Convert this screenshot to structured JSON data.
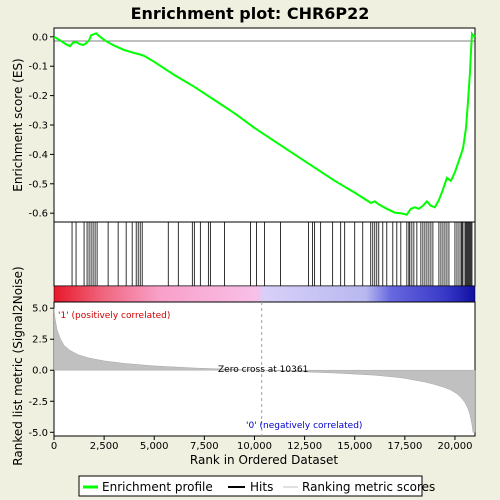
{
  "chart_data": [
    {
      "type": "line",
      "title": "Enrichment plot: CHR6P22",
      "xlabel": "",
      "ylabel": "Enrichment score (ES)",
      "xlim": [
        0,
        21000
      ],
      "ylim": [
        -0.63,
        0.03
      ],
      "yticks": [
        0.0,
        -0.1,
        -0.2,
        -0.3,
        -0.4,
        -0.5,
        -0.6
      ],
      "ytick_labels": [
        "0.0",
        "-0.1",
        "-0.2",
        "-0.3",
        "-0.4",
        "-0.5",
        "-0.6"
      ],
      "series": [
        {
          "name": "Enrichment profile",
          "color": "#00ff00",
          "x": [
            0,
            300,
            600,
            800,
            950,
            1100,
            1300,
            1450,
            1600,
            1750,
            1850,
            1950,
            2100,
            2300,
            2600,
            3000,
            3500,
            4000,
            4300,
            4500,
            5000,
            6000,
            7000,
            8000,
            9000,
            10000,
            11000,
            12000,
            13000,
            14000,
            15000,
            15800,
            16000,
            16200,
            16600,
            17000,
            17300,
            17600,
            17800,
            18000,
            18200,
            18400,
            18600,
            18800,
            19000,
            19200,
            19400,
            19600,
            19800,
            20000,
            20200,
            20400,
            20550,
            20650,
            20750,
            20800,
            20850,
            20900,
            21000
          ],
          "y": [
            0.0,
            -0.012,
            -0.025,
            -0.032,
            -0.02,
            -0.018,
            -0.025,
            -0.028,
            -0.022,
            -0.012,
            0.005,
            0.008,
            0.012,
            0.0,
            -0.015,
            -0.03,
            -0.045,
            -0.055,
            -0.06,
            -0.065,
            -0.085,
            -0.13,
            -0.17,
            -0.215,
            -0.26,
            -0.31,
            -0.355,
            -0.4,
            -0.445,
            -0.49,
            -0.53,
            -0.565,
            -0.56,
            -0.57,
            -0.585,
            -0.598,
            -0.6,
            -0.605,
            -0.585,
            -0.58,
            -0.585,
            -0.575,
            -0.56,
            -0.575,
            -0.58,
            -0.555,
            -0.52,
            -0.48,
            -0.49,
            -0.46,
            -0.42,
            -0.38,
            -0.31,
            -0.22,
            -0.12,
            -0.05,
            0.01,
            0.005,
            0.0
          ]
        }
      ]
    },
    {
      "type": "scatter",
      "title": "",
      "xlabel": "",
      "ylabel": "",
      "xlim": [
        0,
        21000
      ],
      "series": [
        {
          "name": "Hits",
          "color": "#000000",
          "x": [
            900,
            1100,
            1500,
            1650,
            1750,
            1850,
            1950,
            2050,
            2150,
            2700,
            3200,
            3600,
            3900,
            4100,
            4200,
            4300,
            4400,
            5700,
            6200,
            6900,
            7000,
            7300,
            7700,
            7800,
            8500,
            9800,
            10100,
            10500,
            11300,
            12700,
            12900,
            13000,
            13300,
            13900,
            14300,
            14500,
            15000,
            15400,
            15800,
            15900,
            16000,
            16100,
            16200,
            16400,
            16600,
            16900,
            17100,
            17300,
            17600,
            17700,
            17750,
            17850,
            17950,
            18100,
            18300,
            18400,
            18500,
            18600,
            18700,
            18800,
            18900,
            19200,
            19300,
            19400,
            19500,
            19600,
            19700,
            20000,
            20100,
            20200,
            20300,
            20350,
            20400,
            20500,
            20550,
            20600,
            20650,
            20700,
            20750,
            20800,
            20850
          ]
        }
      ]
    },
    {
      "type": "area",
      "title": "",
      "xlabel": "Rank in Ordered Dataset",
      "ylabel": "Ranked list metric (Signal2Noise)",
      "xlim": [
        0,
        21000
      ],
      "ylim": [
        -5.3,
        5.5
      ],
      "xticks": [
        0,
        2500,
        5000,
        7500,
        10000,
        12500,
        15000,
        17500,
        20000
      ],
      "xtick_labels": [
        "0",
        "2,500",
        "5,000",
        "7,500",
        "10,000",
        "12,500",
        "15,000",
        "17,500",
        "20,000"
      ],
      "yticks": [
        5.0,
        2.5,
        0.0,
        -2.5,
        -5.0
      ],
      "ytick_labels": [
        "5.0",
        "2.5",
        "0.0",
        "-2.5",
        "-5.0"
      ],
      "series": [
        {
          "name": "Ranking metric scores",
          "color": "#c0c0c0",
          "x": [
            0,
            50,
            150,
            300,
            500,
            800,
            1200,
            1700,
            2500,
            3500,
            5000,
            7000,
            9000,
            10361,
            12000,
            14000,
            16000,
            17000,
            17500,
            18000,
            18500,
            19000,
            19500,
            19800,
            20100,
            20300,
            20500,
            20650,
            20750,
            20850,
            20900,
            21000
          ],
          "y": [
            5.0,
            4.2,
            3.3,
            2.6,
            2.0,
            1.6,
            1.25,
            1.0,
            0.75,
            0.55,
            0.35,
            0.18,
            0.07,
            0.0,
            -0.1,
            -0.22,
            -0.4,
            -0.55,
            -0.65,
            -0.8,
            -0.95,
            -1.15,
            -1.4,
            -1.6,
            -1.9,
            -2.2,
            -2.6,
            -3.1,
            -3.6,
            -4.4,
            -5.0,
            -5.0
          ]
        }
      ],
      "annotations": [
        "'1' (positively correlated)",
        "Zero cross at 10361",
        "'0' (negatively correlated)"
      ],
      "zero_cross": 10361
    }
  ],
  "legend": {
    "items": [
      {
        "label": "Enrichment profile",
        "color": "#00ff00"
      },
      {
        "label": "Hits",
        "color": "#000000"
      },
      {
        "label": "Ranking metric scores",
        "color": "#c0c0c0"
      }
    ]
  }
}
